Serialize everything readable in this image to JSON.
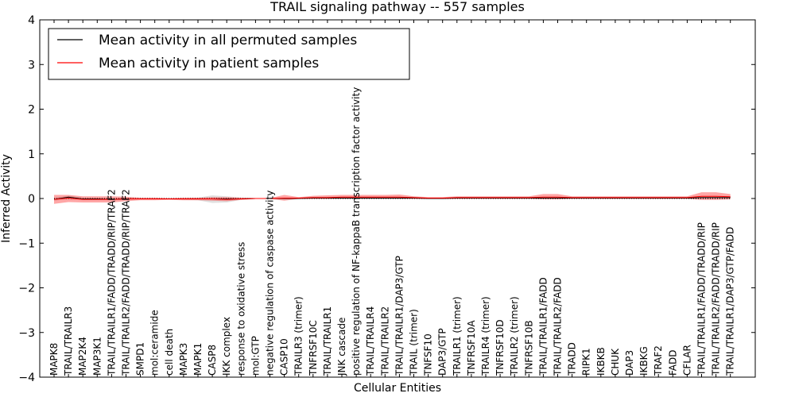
{
  "chart_data": {
    "type": "line",
    "title": "TRAIL signaling pathway -- 557 samples",
    "xlabel": "Cellular Entities",
    "ylabel": "Inferred Activity",
    "ylim": [
      -4,
      4
    ],
    "yticks": [
      4,
      3,
      2,
      1,
      0,
      -1,
      -2,
      -3,
      -4
    ],
    "ytick_labels": [
      "4",
      "3",
      "2",
      "1",
      "0",
      "−1",
      "−2",
      "−3",
      "−4"
    ],
    "legend_position": "top-left",
    "categories": [
      "MAPK8",
      "TRAIL/TRAILR3",
      "MAP2K4",
      "MAP3K1",
      "TRAIL/TRAILR1/FADD/TRADD/RIP/TRAF2",
      "TRAIL/TRAILR2/FADD/TRADD/RIP/TRAF2",
      "SMPD1",
      "mol:ceramide",
      "cell death",
      "MAPK3",
      "MAPK1",
      "CASP8",
      "IKK complex",
      "response to oxidative stress",
      "mol:GTP",
      "negative regulation of caspase activity",
      "CASP10",
      "TRAILR3 (trimer)",
      "TNFRSF10C",
      "TRAIL/TRAILR1",
      "JNK cascade",
      "positive regulation of NF-kappaB transcription factor activity",
      "TRAIL/TRAILR4",
      "TRAIL/TRAILR2",
      "TRAIL/TRAILR1/DAP3/GTP",
      "TRAIL (trimer)",
      "TNFSF10",
      "DAP3/GTP",
      "TRAILR1 (trimer)",
      "TNFRSF10A",
      "TRAILR4 (trimer)",
      "TNFRSF10D",
      "TRAILR2 (trimer)",
      "TNFRSF10B",
      "TRAIL/TRAILR1/FADD",
      "TRAIL/TRAILR2/FADD",
      "TRADD",
      "RIPK1",
      "IKBKB",
      "CHUK",
      "DAP3",
      "IKBKG",
      "TRAF2",
      "FADD",
      "CFLAR",
      "TRAIL/TRAILR1/FADD/TRADD/RIP",
      "TRAIL/TRAILR2/FADD/TRADD/RIP",
      "TRAIL/TRAILR1/DAP3/GTP/FADD"
    ],
    "series": [
      {
        "name": "Mean activity in all permuted samples",
        "color": "#000000",
        "values": [
          -0.02,
          0.03,
          -0.01,
          -0.01,
          -0.02,
          -0.01,
          -0.01,
          -0.01,
          -0.01,
          -0.01,
          -0.01,
          -0.01,
          -0.01,
          -0.01,
          0.0,
          0.0,
          0.0,
          0.0,
          0.01,
          0.01,
          0.01,
          0.01,
          0.01,
          0.01,
          0.01,
          0.01,
          0.0,
          0.0,
          0.01,
          0.01,
          0.01,
          0.01,
          0.01,
          0.01,
          0.01,
          0.01,
          0.01,
          0.01,
          0.01,
          0.01,
          0.01,
          0.01,
          0.01,
          0.01,
          0.01,
          0.02,
          0.02,
          0.02
        ],
        "band_lower": [
          -0.05,
          -0.02,
          -0.03,
          -0.03,
          -0.04,
          -0.03,
          -0.02,
          -0.02,
          -0.02,
          -0.03,
          -0.04,
          -0.1,
          -0.09,
          -0.03,
          -0.01,
          -0.01,
          -0.01,
          -0.01,
          -0.01,
          -0.01,
          0.0,
          0.0,
          0.0,
          0.0,
          0.0,
          0.0,
          -0.01,
          -0.01,
          0.0,
          0.0,
          0.0,
          0.0,
          0.0,
          0.0,
          0.0,
          0.0,
          0.0,
          0.0,
          0.0,
          0.0,
          0.0,
          0.0,
          0.0,
          0.0,
          0.0,
          0.0,
          0.0,
          0.0
        ],
        "band_upper": [
          0.02,
          0.06,
          0.02,
          0.02,
          0.01,
          0.02,
          0.01,
          0.01,
          0.01,
          0.01,
          0.02,
          0.07,
          0.05,
          0.02,
          0.01,
          0.01,
          0.01,
          0.01,
          0.02,
          0.02,
          0.02,
          0.02,
          0.02,
          0.02,
          0.02,
          0.02,
          0.01,
          0.01,
          0.02,
          0.02,
          0.02,
          0.02,
          0.02,
          0.02,
          0.02,
          0.02,
          0.02,
          0.02,
          0.02,
          0.02,
          0.02,
          0.02,
          0.02,
          0.02,
          0.02,
          0.04,
          0.04,
          0.04
        ]
      },
      {
        "name": "Mean activity in patient samples",
        "color": "#ff0000",
        "values": [
          -0.02,
          0.01,
          -0.02,
          -0.02,
          -0.02,
          -0.01,
          -0.01,
          -0.01,
          -0.01,
          -0.01,
          -0.01,
          -0.01,
          -0.02,
          -0.01,
          0.0,
          0.0,
          0.01,
          0.01,
          0.02,
          0.02,
          0.03,
          0.03,
          0.03,
          0.03,
          0.03,
          0.02,
          0.01,
          0.01,
          0.02,
          0.02,
          0.02,
          0.02,
          0.02,
          0.02,
          0.03,
          0.03,
          0.02,
          0.02,
          0.02,
          0.02,
          0.02,
          0.02,
          0.02,
          0.02,
          0.02,
          0.05,
          0.05,
          0.04
        ],
        "band_lower": [
          -0.12,
          -0.08,
          -0.09,
          -0.09,
          -0.09,
          -0.06,
          -0.04,
          -0.04,
          -0.03,
          -0.04,
          -0.04,
          -0.05,
          -0.06,
          -0.03,
          -0.01,
          -0.01,
          -0.05,
          -0.01,
          -0.01,
          -0.01,
          -0.01,
          -0.01,
          -0.01,
          -0.01,
          -0.01,
          -0.01,
          -0.01,
          -0.01,
          -0.01,
          -0.01,
          -0.01,
          -0.01,
          -0.01,
          -0.01,
          -0.02,
          -0.02,
          -0.01,
          -0.01,
          -0.01,
          -0.01,
          -0.01,
          -0.01,
          -0.01,
          -0.01,
          -0.01,
          -0.03,
          -0.03,
          -0.02
        ],
        "band_upper": [
          0.08,
          0.08,
          0.05,
          0.05,
          0.05,
          0.04,
          0.02,
          0.02,
          0.01,
          0.02,
          0.02,
          0.03,
          0.03,
          0.02,
          0.01,
          0.01,
          0.08,
          0.03,
          0.06,
          0.07,
          0.08,
          0.08,
          0.08,
          0.08,
          0.09,
          0.05,
          0.03,
          0.03,
          0.05,
          0.05,
          0.05,
          0.05,
          0.05,
          0.05,
          0.1,
          0.1,
          0.05,
          0.05,
          0.05,
          0.05,
          0.05,
          0.05,
          0.05,
          0.05,
          0.05,
          0.14,
          0.14,
          0.1
        ]
      }
    ],
    "zero_line": "dotted"
  }
}
